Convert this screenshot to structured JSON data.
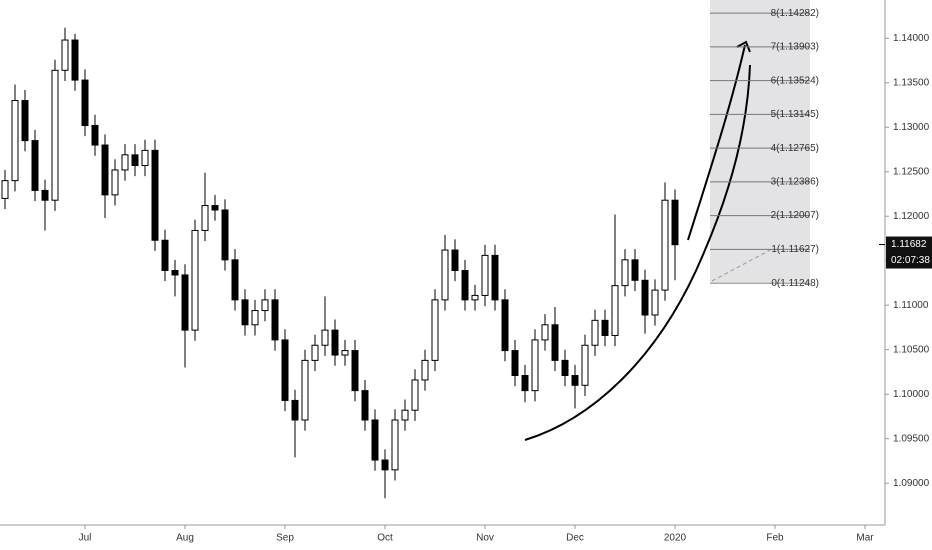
{
  "chart_data": {
    "type": "candlestick",
    "color": "#000000",
    "categories": [
      null,
      null,
      null,
      null,
      null,
      null,
      null,
      null,
      "Jul",
      null,
      null,
      null,
      null,
      null,
      null,
      null,
      null,
      null,
      "Aug",
      null,
      null,
      null,
      null,
      null,
      null,
      null,
      null,
      null,
      "Sep",
      null,
      null,
      null,
      null,
      null,
      null,
      null,
      null,
      null,
      "Oct",
      null,
      null,
      null,
      null,
      null,
      null,
      null,
      null,
      null,
      "Nov",
      null,
      null,
      null,
      null,
      null,
      null,
      null,
      null,
      "Dec",
      null,
      null,
      null,
      null,
      null,
      null,
      null,
      null,
      null,
      "2020",
      null,
      null,
      null,
      null,
      null,
      null,
      null,
      null,
      null,
      "Feb",
      null,
      null,
      null,
      null,
      null,
      null,
      null,
      null,
      "Mar",
      null
    ],
    "open": [
      1.122,
      1.124,
      1.133,
      1.1285,
      1.1229,
      1.1218,
      1.1364,
      1.1398,
      1.1353,
      1.1302,
      1.128,
      1.1224,
      1.1252,
      1.1269,
      1.1257,
      1.1274,
      1.1173,
      1.1139,
      1.1134,
      1.1072,
      1.1184,
      1.1212,
      1.1207,
      1.1151,
      1.1106,
      1.1078,
      1.1094,
      1.1106,
      1.1061,
      1.0993,
      1.0971,
      1.1038,
      1.1055,
      1.1072,
      1.1044,
      1.1049,
      1.1004,
      1.0971,
      1.0926,
      1.0915,
      1.0971,
      1.0982,
      1.1016,
      1.1038,
      1.1106,
      1.1162,
      1.1139,
      1.1106,
      1.1111,
      1.1156,
      1.1106,
      1.1049,
      1.1021,
      1.1004,
      1.1061,
      1.1078,
      1.1038,
      1.1021,
      1.101,
      1.1055,
      1.1083,
      1.1066,
      1.1122,
      1.1151,
      1.1128,
      1.1089,
      1.1117,
      1.1218,
      null,
      null,
      null,
      null,
      null,
      null,
      null,
      null,
      null,
      null,
      null,
      null,
      null,
      null,
      null,
      null,
      null,
      null,
      null,
      null
    ],
    "high": [
      1.1252,
      1.1348,
      1.1342,
      1.1297,
      1.1241,
      1.1376,
      1.1412,
      1.1405,
      1.1365,
      1.1314,
      1.1292,
      1.1264,
      1.1281,
      1.1281,
      1.1286,
      1.1286,
      1.1185,
      1.1151,
      1.1146,
      1.1196,
      1.1249,
      1.1224,
      1.1219,
      1.1163,
      1.1118,
      1.1106,
      1.1118,
      1.1118,
      1.1073,
      1.1005,
      1.105,
      1.1067,
      1.111,
      1.1084,
      1.1061,
      1.1061,
      1.1016,
      1.0983,
      1.0938,
      1.0983,
      1.0994,
      1.1028,
      1.105,
      1.1118,
      1.1179,
      1.1174,
      1.1151,
      1.1123,
      1.1168,
      1.1168,
      1.1118,
      1.1061,
      1.1033,
      1.1073,
      1.109,
      1.1098,
      1.105,
      1.1033,
      1.1067,
      1.1095,
      1.1095,
      1.1202,
      1.1163,
      1.1163,
      1.114,
      1.1129,
      1.1238,
      1.123,
      null,
      null,
      null,
      null,
      null,
      null,
      null,
      null,
      null,
      null,
      null,
      null,
      null,
      null,
      null,
      null,
      null,
      null,
      null,
      null
    ],
    "low": [
      1.1208,
      1.1228,
      1.1273,
      1.1217,
      1.1184,
      1.1206,
      1.1352,
      1.1341,
      1.129,
      1.1268,
      1.1198,
      1.1212,
      1.124,
      1.1245,
      1.1245,
      1.1161,
      1.1127,
      1.111,
      1.103,
      1.106,
      1.1172,
      1.1195,
      1.1139,
      1.1094,
      1.1066,
      1.1066,
      1.1082,
      1.1049,
      1.0981,
      1.0929,
      1.0959,
      1.1026,
      1.1043,
      1.1032,
      1.1032,
      1.0992,
      1.0959,
      1.0914,
      1.0883,
      1.0903,
      1.0959,
      1.097,
      1.1004,
      1.1026,
      1.1094,
      1.1127,
      1.1094,
      1.1094,
      1.1099,
      1.1094,
      1.1037,
      1.1009,
      1.0991,
      1.0992,
      1.1049,
      1.1026,
      1.1009,
      1.0984,
      1.0998,
      1.1043,
      1.1054,
      1.1054,
      1.111,
      1.1116,
      1.1068,
      1.1077,
      1.1105,
      1.1128,
      null,
      null,
      null,
      null,
      null,
      null,
      null,
      null,
      null,
      null,
      null,
      null,
      null,
      null,
      null,
      null,
      null,
      null,
      null,
      null
    ],
    "close": [
      1.124,
      1.133,
      1.1285,
      1.1229,
      1.1218,
      1.1364,
      1.1398,
      1.1353,
      1.1302,
      1.128,
      1.1224,
      1.1252,
      1.1269,
      1.1257,
      1.1274,
      1.1173,
      1.1139,
      1.1134,
      1.1072,
      1.1184,
      1.1212,
      1.1207,
      1.1151,
      1.1106,
      1.1078,
      1.1094,
      1.1106,
      1.1061,
      1.0993,
      1.0971,
      1.1038,
      1.1055,
      1.1072,
      1.1044,
      1.1049,
      1.1004,
      1.0971,
      1.0926,
      1.0915,
      1.0971,
      1.0982,
      1.1016,
      1.1038,
      1.1106,
      1.1162,
      1.1139,
      1.1106,
      1.1111,
      1.1156,
      1.1106,
      1.1049,
      1.1021,
      1.1004,
      1.1061,
      1.1078,
      1.1038,
      1.1021,
      1.101,
      1.1055,
      1.1083,
      1.1066,
      1.1122,
      1.1151,
      1.1128,
      1.1089,
      1.1117,
      1.1218,
      1.1168,
      null,
      null,
      null,
      null,
      null,
      null,
      null,
      null,
      null,
      null,
      null,
      null,
      null,
      null,
      null,
      null,
      null,
      null,
      null,
      null
    ],
    "ylim": [
      1.0853,
      1.1443
    ],
    "yticks": [
      {
        "value": 1.09,
        "label": "1.09000"
      },
      {
        "value": 1.095,
        "label": "1.09500"
      },
      {
        "value": 1.1,
        "label": "1.10000"
      },
      {
        "value": 1.105,
        "label": "1.10500"
      },
      {
        "value": 1.11,
        "label": "1.11000"
      },
      {
        "value": 1.115,
        "label": "1.11500"
      },
      {
        "value": 1.12,
        "label": "1.12000"
      },
      {
        "value": 1.125,
        "label": "1.12500"
      },
      {
        "value": 1.13,
        "label": "1.13000"
      },
      {
        "value": 1.135,
        "label": "1.13500"
      },
      {
        "value": 1.14,
        "label": "1.14000"
      }
    ],
    "fib_levels": [
      {
        "value": 1.11248,
        "label": "0(1.11248)"
      },
      {
        "value": 1.11627,
        "label": "1(1.11627)"
      },
      {
        "value": 1.12007,
        "label": "2(1.12007)"
      },
      {
        "value": 1.12386,
        "label": "3(1.12386)"
      },
      {
        "value": 1.12765,
        "label": "4(1.12765)"
      },
      {
        "value": 1.13145,
        "label": "5(1.13145)"
      },
      {
        "value": 1.13524,
        "label": "6(1.13524)"
      },
      {
        "value": 1.13903,
        "label": "7(1.13903)"
      },
      {
        "value": 1.14282,
        "label": "8(1.14282)"
      }
    ],
    "last_price": {
      "value": 1.11682,
      "label": "1.11682"
    },
    "countdown": "02:07:38"
  }
}
